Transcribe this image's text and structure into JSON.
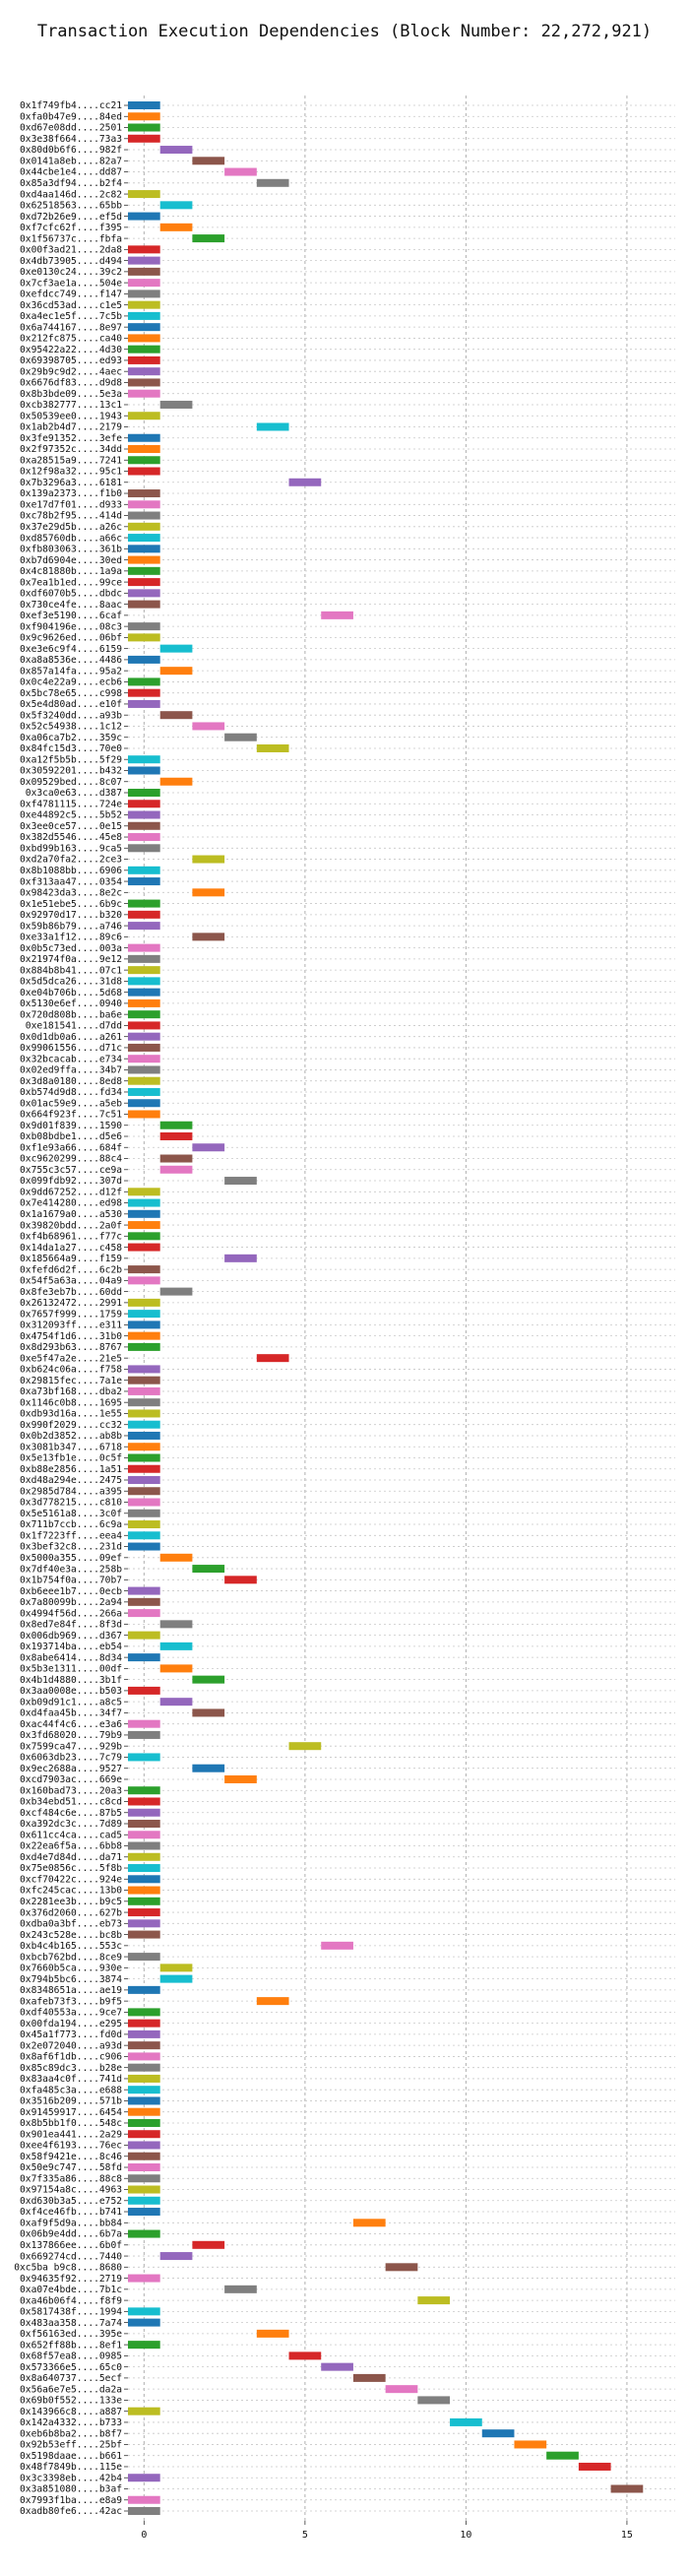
{
  "chart_data": {
    "type": "bar",
    "orientation": "horizontal",
    "title": "Transaction Execution Dependencies (Block Number: 22,272,921)",
    "xlabel": "",
    "ylabel": "",
    "xlim": [
      -0.5,
      16.5
    ],
    "xticks": [
      0,
      5,
      10,
      15
    ],
    "grid": true,
    "legend": "none",
    "palette": [
      "#1f77b4",
      "#ff7f0e",
      "#2ca02c",
      "#d62728",
      "#9467bd",
      "#8c564b",
      "#e377c2",
      "#7f7f7f",
      "#bcbd22",
      "#17becf"
    ],
    "transactions": [
      {
        "label": "0x1f749fb4....cc21",
        "start": 0
      },
      {
        "label": "0xfa0b47e9....84ed",
        "start": 0
      },
      {
        "label": "0xd67e08dd....2501",
        "start": 0
      },
      {
        "label": "0x3e38f664....73a3",
        "start": 0
      },
      {
        "label": "0x80d0b6f6....982f",
        "start": 1
      },
      {
        "label": "0x0141a8eb....82a7",
        "start": 2
      },
      {
        "label": "0x44cbe1e4....dd87",
        "start": 3
      },
      {
        "label": "0x85a3df94....b2f4",
        "start": 4
      },
      {
        "label": "0xd4aa146d....2c82",
        "start": 0
      },
      {
        "label": "0x62518563....65bb",
        "start": 1
      },
      {
        "label": "0xd72b26e9....ef5d",
        "start": 0
      },
      {
        "label": "0xf7cfc62f....f395",
        "start": 1
      },
      {
        "label": "0x1f56737c....fbfa",
        "start": 2
      },
      {
        "label": "0x00f3ad21....2da8",
        "start": 0
      },
      {
        "label": "0x4db73905....d494",
        "start": 0
      },
      {
        "label": "0xe0130c24....39c2",
        "start": 0
      },
      {
        "label": "0x7cf3ae1a....504e",
        "start": 0
      },
      {
        "label": "0xefdcc749....f147",
        "start": 0
      },
      {
        "label": "0x36cd53ad....c1e5",
        "start": 0
      },
      {
        "label": "0xa4ec1e5f....7c5b",
        "start": 0
      },
      {
        "label": "0x6a744167....8e97",
        "start": 0
      },
      {
        "label": "0x212fc875....ca40",
        "start": 0
      },
      {
        "label": "0x95422a22....4d30",
        "start": 0
      },
      {
        "label": "0x69398705....ed93",
        "start": 0
      },
      {
        "label": "0x29b9c9d2....4aec",
        "start": 0
      },
      {
        "label": "0x6676df83....d9d8",
        "start": 0
      },
      {
        "label": "0x8b3bde09....5e3a",
        "start": 0
      },
      {
        "label": "0xcb382777....13c1",
        "start": 1
      },
      {
        "label": "0x50539ee0....1943",
        "start": 0
      },
      {
        "label": "0x1ab2b4d7....2179",
        "start": 4
      },
      {
        "label": "0x3fe91352....3efe",
        "start": 0
      },
      {
        "label": "0x2f97352c....34dd",
        "start": 0
      },
      {
        "label": "0xa28515a9....7241",
        "start": 0
      },
      {
        "label": "0x12f98a32....95c1",
        "start": 0
      },
      {
        "label": "0x7b3296a3....6181",
        "start": 5
      },
      {
        "label": "0x139a2373....f1b0",
        "start": 0
      },
      {
        "label": "0xe17d7f01....d933",
        "start": 0
      },
      {
        "label": "0xc78b2f95....414d",
        "start": 0
      },
      {
        "label": "0x37e29d5b....a26c",
        "start": 0
      },
      {
        "label": "0xd85760db....a66c",
        "start": 0
      },
      {
        "label": "0xfb803063....361b",
        "start": 0
      },
      {
        "label": "0xb7d6904e....30ed",
        "start": 0
      },
      {
        "label": "0x4c81880b....1a9a",
        "start": 0
      },
      {
        "label": "0x7ea1b1ed....99ce",
        "start": 0
      },
      {
        "label": "0xdf6070b5....dbdc",
        "start": 0
      },
      {
        "label": "0x730ce4fe....8aac",
        "start": 0
      },
      {
        "label": "0xef3e5190....6caf",
        "start": 6
      },
      {
        "label": "0xf904196e....08c3",
        "start": 0
      },
      {
        "label": "0x9c9626ed....06bf",
        "start": 0
      },
      {
        "label": "0xe3e6c9f4....6159",
        "start": 1
      },
      {
        "label": "0xa8a8536e....4486",
        "start": 0
      },
      {
        "label": "0x857a14fa....95a2",
        "start": 1
      },
      {
        "label": "0x0c4e22a9....ecb6",
        "start": 0
      },
      {
        "label": "0x5bc78e65....c998",
        "start": 0
      },
      {
        "label": "0x5e4d80ad....e10f",
        "start": 0
      },
      {
        "label": "0x5f3240dd....a93b",
        "start": 1
      },
      {
        "label": "0x52c54938....1c12",
        "start": 2
      },
      {
        "label": "0xa06ca7b2....359c",
        "start": 3
      },
      {
        "label": "0x84fc15d3....70e0",
        "start": 4
      },
      {
        "label": "0xa12f5b5b....5f29",
        "start": 0
      },
      {
        "label": "0x30592201....b432",
        "start": 0
      },
      {
        "label": "0x09529bed....8c07",
        "start": 1
      },
      {
        "label": "0x3ca0e63....d387",
        "start": 0
      },
      {
        "label": "0xf4781115....724e",
        "start": 0
      },
      {
        "label": "0xe44892c5....5b52",
        "start": 0
      },
      {
        "label": "0x3ee0ce57....0e15",
        "start": 0
      },
      {
        "label": "0x382d5546....45e8",
        "start": 0
      },
      {
        "label": "0xbd99b163....9ca5",
        "start": 0
      },
      {
        "label": "0xd2a70fa2....2ce3",
        "start": 2
      },
      {
        "label": "0x8b1088bb....6906",
        "start": 0
      },
      {
        "label": "0xf313aa47....0354",
        "start": 0
      },
      {
        "label": "0x98423da3....8e2c",
        "start": 2
      },
      {
        "label": "0x1e51ebe5....6b9c",
        "start": 0
      },
      {
        "label": "0x92970d17....b320",
        "start": 0
      },
      {
        "label": "0x59b86b79....a746",
        "start": 0
      },
      {
        "label": "0xe33a1f12....89c6",
        "start": 2
      },
      {
        "label": "0x0b5c73ed....003a",
        "start": 0
      },
      {
        "label": "0x21974f0a....9e12",
        "start": 0
      },
      {
        "label": "0x884b8b41....07c1",
        "start": 0
      },
      {
        "label": "0x5d5dca26....31d8",
        "start": 0
      },
      {
        "label": "0xe04b706b....5d68",
        "start": 0
      },
      {
        "label": "0x5130e6ef....0940",
        "start": 0
      },
      {
        "label": "0x720d808b....ba6e",
        "start": 0
      },
      {
        "label": "0xe181541....d7dd",
        "start": 0
      },
      {
        "label": "0x0d1db0a6....a261",
        "start": 0
      },
      {
        "label": "0x99061556....d71c",
        "start": 0
      },
      {
        "label": "0x32bcacab....e734",
        "start": 0
      },
      {
        "label": "0x02ed9ffa....34b7",
        "start": 0
      },
      {
        "label": "0x3d8a0180....8ed8",
        "start": 0
      },
      {
        "label": "0xb574d9d8....fd34",
        "start": 0
      },
      {
        "label": "0x01ac59e9....a5eb",
        "start": 0
      },
      {
        "label": "0x664f923f....7c51",
        "start": 0
      },
      {
        "label": "0x9d01f839....1590",
        "start": 1
      },
      {
        "label": "0xb08bdbe1....d5e6",
        "start": 1
      },
      {
        "label": "0xf1e93a66....684f",
        "start": 2
      },
      {
        "label": "0xc9620299....88c4",
        "start": 1
      },
      {
        "label": "0x755c3c57....ce9a",
        "start": 1
      },
      {
        "label": "0x099fdb92....307d",
        "start": 3
      },
      {
        "label": "0x9dd67252....d12f",
        "start": 0
      },
      {
        "label": "0x7e414280....ed98",
        "start": 0
      },
      {
        "label": "0x1a1679a0....a530",
        "start": 0
      },
      {
        "label": "0x39820bdd....2a0f",
        "start": 0
      },
      {
        "label": "0xf4b68961....f77c",
        "start": 0
      },
      {
        "label": "0x14da1a27....c458",
        "start": 0
      },
      {
        "label": "0x185664a9....f159",
        "start": 3
      },
      {
        "label": "0xfefd6d2f....6c2b",
        "start": 0
      },
      {
        "label": "0x54f5a63a....04a9",
        "start": 0
      },
      {
        "label": "0x8fe3eb7b....60dd",
        "start": 1
      },
      {
        "label": "0x26132472....2991",
        "start": 0
      },
      {
        "label": "0x7657f999....1759",
        "start": 0
      },
      {
        "label": "0x312093ff....e311",
        "start": 0
      },
      {
        "label": "0x4754f1d6....31b0",
        "start": 0
      },
      {
        "label": "0x8d293b63....8767",
        "start": 0
      },
      {
        "label": "0xe5f47a2e....21e5",
        "start": 4
      },
      {
        "label": "0xb624c06a....f758",
        "start": 0
      },
      {
        "label": "0x29815fec....7a1e",
        "start": 0
      },
      {
        "label": "0xa73bf168....dba2",
        "start": 0
      },
      {
        "label": "0x1146c0b8....1695",
        "start": 0
      },
      {
        "label": "0xdb93d16a....1e55",
        "start": 0
      },
      {
        "label": "0x990f2029....cc32",
        "start": 0
      },
      {
        "label": "0x0b2d3852....ab8b",
        "start": 0
      },
      {
        "label": "0x3081b347....6718",
        "start": 0
      },
      {
        "label": "0x5e13fb1e....0c5f",
        "start": 0
      },
      {
        "label": "0xb88e2856....1a51",
        "start": 0
      },
      {
        "label": "0xd48a294e....2475",
        "start": 0
      },
      {
        "label": "0x2985d784....a395",
        "start": 0
      },
      {
        "label": "0x3d778215....c810",
        "start": 0
      },
      {
        "label": "0x5e5161a8....3c0f",
        "start": 0
      },
      {
        "label": "0x711b7ccb....6c9a",
        "start": 0
      },
      {
        "label": "0x1f7223ff....eea4",
        "start": 0
      },
      {
        "label": "0x3bef32c8....231d",
        "start": 0
      },
      {
        "label": "0x5000a355....09ef",
        "start": 1
      },
      {
        "label": "0x7df40e3a....258b",
        "start": 2
      },
      {
        "label": "0x1b754f0a....70b7",
        "start": 3
      },
      {
        "label": "0xb6eee1b7....0ecb",
        "start": 0
      },
      {
        "label": "0x7a80099b....2a94",
        "start": 0
      },
      {
        "label": "0x4994f56d....266a",
        "start": 0
      },
      {
        "label": "0x8ed7e84f....8f3d",
        "start": 1
      },
      {
        "label": "0x006db969....d367",
        "start": 0
      },
      {
        "label": "0x193714ba....eb54",
        "start": 1
      },
      {
        "label": "0x8abe6414....8d34",
        "start": 0
      },
      {
        "label": "0x5b3e1311....00df",
        "start": 1
      },
      {
        "label": "0x4b1d4880....3b1f",
        "start": 2
      },
      {
        "label": "0x3aa0008e....b503",
        "start": 0
      },
      {
        "label": "0xb09d91c1....a8c5",
        "start": 1
      },
      {
        "label": "0xd4faa45b....34f7",
        "start": 2
      },
      {
        "label": "0xac44f4c6....e3a6",
        "start": 0
      },
      {
        "label": "0x3fd68020....79b9",
        "start": 0
      },
      {
        "label": "0x7599ca47....929b",
        "start": 5
      },
      {
        "label": "0x6063db23....7c79",
        "start": 0
      },
      {
        "label": "0x9ec2688a....9527",
        "start": 2
      },
      {
        "label": "0xcd7903ac....669e",
        "start": 3
      },
      {
        "label": "0x160bad73....20a3",
        "start": 0
      },
      {
        "label": "0xb34ebd51....c8cd",
        "start": 0
      },
      {
        "label": "0xcf484c6e....87b5",
        "start": 0
      },
      {
        "label": "0xa392dc3c....7d89",
        "start": 0
      },
      {
        "label": "0x611cc4ca....cad5",
        "start": 0
      },
      {
        "label": "0x22ea6f5a....6bb8",
        "start": 0
      },
      {
        "label": "0xd4e7d84d....da71",
        "start": 0
      },
      {
        "label": "0x75e0856c....5f8b",
        "start": 0
      },
      {
        "label": "0xcf70422c....924e",
        "start": 0
      },
      {
        "label": "0xfc245cac....13b0",
        "start": 0
      },
      {
        "label": "0x2281ee3b....b9c5",
        "start": 0
      },
      {
        "label": "0x376d2060....627b",
        "start": 0
      },
      {
        "label": "0xdba0a3bf....eb73",
        "start": 0
      },
      {
        "label": "0x243c528e....bc8b",
        "start": 0
      },
      {
        "label": "0xb4c4b165....553c",
        "start": 6
      },
      {
        "label": "0xbcb762bd....8ce9",
        "start": 0
      },
      {
        "label": "0x7660b5ca....930e",
        "start": 1
      },
      {
        "label": "0x794b5bc6....3874",
        "start": 1
      },
      {
        "label": "0x8348651a....ae19",
        "start": 0
      },
      {
        "label": "0xafeb73f3....b9f5",
        "start": 4
      },
      {
        "label": "0xdf40553a....9ce7",
        "start": 0
      },
      {
        "label": "0x00fda194....e295",
        "start": 0
      },
      {
        "label": "0x45a1f773....fd0d",
        "start": 0
      },
      {
        "label": "0x2e072040....a93d",
        "start": 0
      },
      {
        "label": "0x8af6f1db....c906",
        "start": 0
      },
      {
        "label": "0x85c89dc3....b28e",
        "start": 0
      },
      {
        "label": "0x83aa4c0f....741d",
        "start": 0
      },
      {
        "label": "0xfa485c3a....e688",
        "start": 0
      },
      {
        "label": "0x3516b209....571b",
        "start": 0
      },
      {
        "label": "0x91459917....6454",
        "start": 0
      },
      {
        "label": "0x8b5bb1f0....548c",
        "start": 0
      },
      {
        "label": "0x901ea441....2a29",
        "start": 0
      },
      {
        "label": "0xee4f6193....76ec",
        "start": 0
      },
      {
        "label": "0x58f9421e....8c46",
        "start": 0
      },
      {
        "label": "0x50e9c747....58fd",
        "start": 0
      },
      {
        "label": "0x7f335a86....88c8",
        "start": 0
      },
      {
        "label": "0x97154a8c....4963",
        "start": 0
      },
      {
        "label": "0xd630b3a5....e752",
        "start": 0
      },
      {
        "label": "0xf4ce46fb....b741",
        "start": 0
      },
      {
        "label": "0xaf9f5d9a....bb84",
        "start": 7
      },
      {
        "label": "0x06b9e4dd....6b7a",
        "start": 0
      },
      {
        "label": "0x137866ee....6b0f",
        "start": 2
      },
      {
        "label": "0x669274cd....7440",
        "start": 1
      },
      {
        "label": "0xc5ba b9c8....8680",
        "start": 8
      },
      {
        "label": "0x94635f92....2719",
        "start": 0
      },
      {
        "label": "0xa07e4bde....7b1c",
        "start": 3
      },
      {
        "label": "0xa46b06f4....f8f9",
        "start": 9
      },
      {
        "label": "0x5817438f....1994",
        "start": 0
      },
      {
        "label": "0x483aa358....7a74",
        "start": 0
      },
      {
        "label": "0xf56163ed....395e",
        "start": 4
      },
      {
        "label": "0x652ff88b....8ef1",
        "start": 0
      },
      {
        "label": "0x68f57ea8....0985",
        "start": 5
      },
      {
        "label": "0x573366e5....65c0",
        "start": 6
      },
      {
        "label": "0x8a640737....5ecf",
        "start": 7
      },
      {
        "label": "0x56a6e7e5....da2a",
        "start": 8
      },
      {
        "label": "0x69b0f552....133e",
        "start": 9
      },
      {
        "label": "0x143966c8....a887",
        "start": 0
      },
      {
        "label": "0x142a4332....b733",
        "start": 10
      },
      {
        "label": "0xeb6b8ba2....b8f7",
        "start": 11
      },
      {
        "label": "0x92b53eff....25bf",
        "start": 12
      },
      {
        "label": "0x5198daae....b661",
        "start": 13
      },
      {
        "label": "0x48f7849b....115e",
        "start": 14
      },
      {
        "label": "0x3c3398eb....42b4",
        "start": 0
      },
      {
        "label": "0x3a851080....b3af",
        "start": 15
      },
      {
        "label": "0x7993f1ba....e8a9",
        "start": 0
      },
      {
        "label": "0xadb80fe6....42ac",
        "start": 0
      }
    ]
  }
}
